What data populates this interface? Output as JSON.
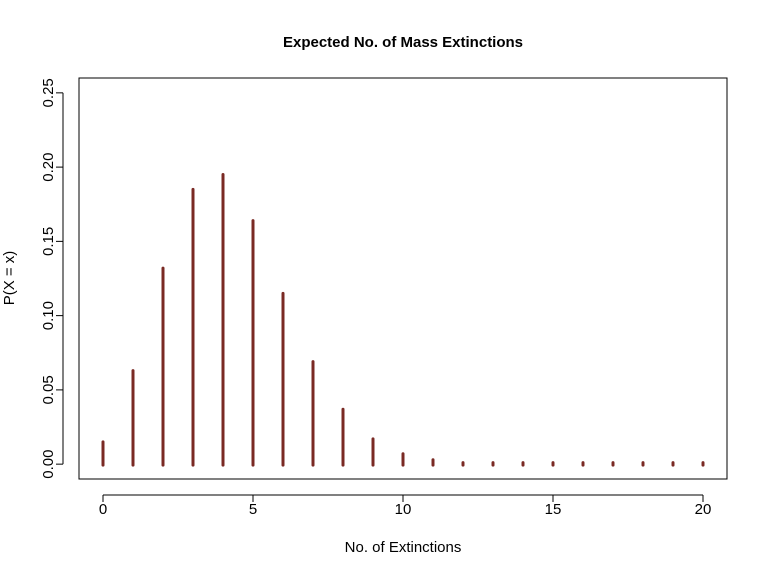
{
  "chart_data": {
    "type": "bar",
    "title": "Expected No. of Mass Extinctions",
    "xlabel": "No. of Extinctions",
    "ylabel": "P(X = x)",
    "x": [
      0,
      1,
      2,
      3,
      4,
      5,
      6,
      7,
      8,
      9,
      10,
      11,
      12,
      13,
      14,
      15,
      16,
      17,
      18,
      19,
      20
    ],
    "values": [
      0.015,
      0.063,
      0.132,
      0.185,
      0.195,
      0.164,
      0.115,
      0.069,
      0.037,
      0.017,
      0.007,
      0.003,
      0.001,
      0.0003,
      0.0001,
      3e-05,
      1e-05,
      0.0,
      0.0,
      0.0,
      0.0
    ],
    "xlim": [
      -0.8,
      20.8
    ],
    "ylim": [
      -0.01,
      0.26
    ],
    "xticks": [
      0,
      5,
      10,
      15,
      20
    ],
    "xtick_labels": [
      "0",
      "5",
      "10",
      "15",
      "20"
    ],
    "yticks": [
      0.0,
      0.05,
      0.1,
      0.15,
      0.2,
      0.25
    ],
    "ytick_labels": [
      "0.00",
      "0.05",
      "0.10",
      "0.15",
      "0.20",
      "0.25"
    ],
    "grid": false,
    "bar_color": "#7a2a24"
  }
}
